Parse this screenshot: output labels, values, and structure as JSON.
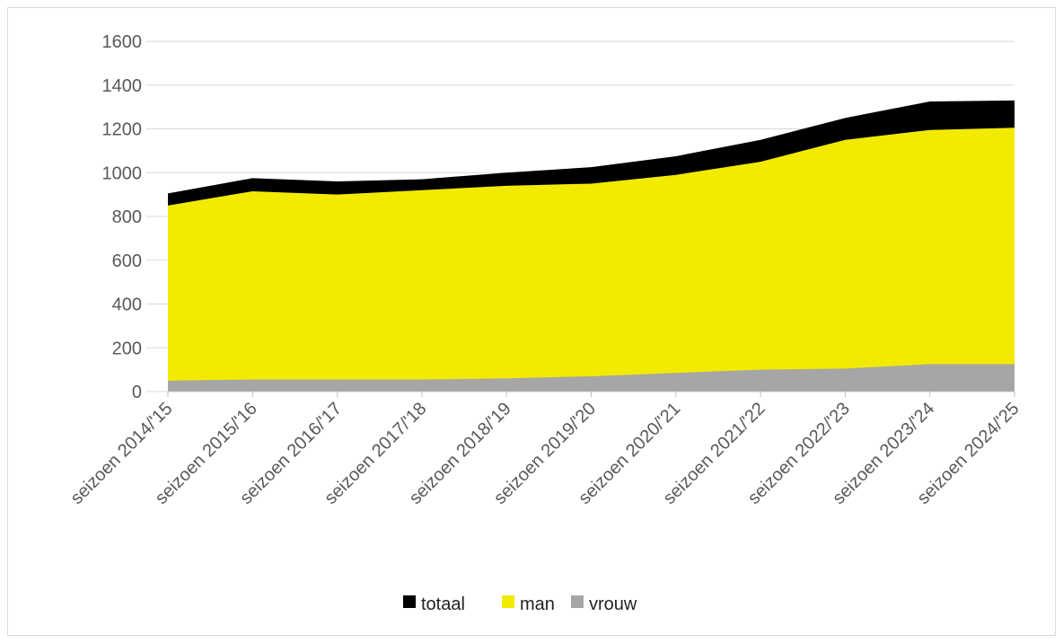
{
  "chart_data": {
    "type": "area",
    "categories": [
      "seizoen 2014/'15",
      "seizoen 2015/'16",
      "seizoen 2016/'17",
      "seizoen 2017/'18",
      "seizoen 2018/'19",
      "seizoen 2019/'20",
      "seizoen 2020/'21",
      "seizoen 2021/'22",
      "seizoen 2022/'23",
      "seizoen 2023/'24",
      "seizoen 2024/'25"
    ],
    "series": [
      {
        "name": "totaal",
        "color": "#000000",
        "values": [
          905,
          975,
          960,
          970,
          1000,
          1025,
          1075,
          1150,
          1250,
          1325,
          1330
        ]
      },
      {
        "name": "man",
        "color": "#f2ea00",
        "values": [
          850,
          915,
          900,
          920,
          940,
          950,
          990,
          1050,
          1150,
          1195,
          1205
        ]
      },
      {
        "name": "vrouw",
        "color": "#a6a6a6",
        "values": [
          50,
          55,
          55,
          55,
          60,
          70,
          85,
          100,
          105,
          125,
          125
        ]
      }
    ],
    "ylim": [
      0,
      1600
    ],
    "yticks": [
      0,
      200,
      400,
      600,
      800,
      1000,
      1200,
      1400,
      1600
    ],
    "grid": true,
    "legend": "bottom"
  }
}
